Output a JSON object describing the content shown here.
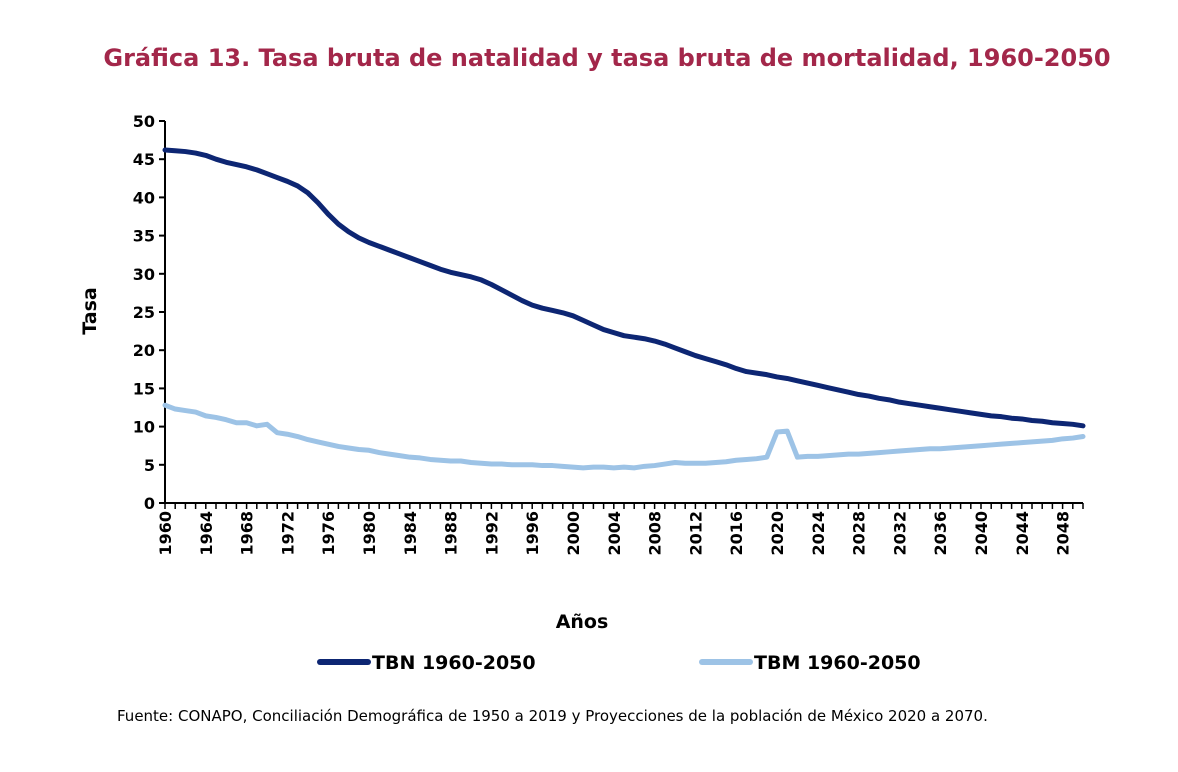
{
  "chart_data": {
    "type": "line",
    "title": "Gráfica 13. Tasa bruta de natalidad y tasa bruta de mortalidad, 1960-2050",
    "xlabel": "Años",
    "ylabel": "Tasa",
    "xlim": [
      1960,
      2050
    ],
    "ylim": [
      0,
      50
    ],
    "yticks": [
      0,
      5,
      10,
      15,
      20,
      25,
      30,
      35,
      40,
      45,
      50
    ],
    "xticks": [
      1960,
      1964,
      1968,
      1972,
      1976,
      1980,
      1984,
      1988,
      1992,
      1996,
      2000,
      2004,
      2008,
      2012,
      2016,
      2020,
      2024,
      2028,
      2032,
      2036,
      2040,
      2044,
      2048
    ],
    "grid": false,
    "legend": "bottom",
    "series": [
      {
        "name": "TBN 1960-2050",
        "color": "#0d2673",
        "points": [
          [
            1960,
            46.2
          ],
          [
            1961,
            46.1
          ],
          [
            1962,
            46.0
          ],
          [
            1963,
            45.8
          ],
          [
            1964,
            45.5
          ],
          [
            1965,
            45.0
          ],
          [
            1966,
            44.6
          ],
          [
            1967,
            44.3
          ],
          [
            1968,
            44.0
          ],
          [
            1969,
            43.6
          ],
          [
            1970,
            43.1
          ],
          [
            1971,
            42.6
          ],
          [
            1972,
            42.1
          ],
          [
            1973,
            41.5
          ],
          [
            1974,
            40.6
          ],
          [
            1975,
            39.3
          ],
          [
            1976,
            37.8
          ],
          [
            1977,
            36.5
          ],
          [
            1978,
            35.5
          ],
          [
            1979,
            34.7
          ],
          [
            1980,
            34.1
          ],
          [
            1981,
            33.6
          ],
          [
            1982,
            33.1
          ],
          [
            1983,
            32.6
          ],
          [
            1984,
            32.1
          ],
          [
            1985,
            31.6
          ],
          [
            1986,
            31.1
          ],
          [
            1987,
            30.6
          ],
          [
            1988,
            30.2
          ],
          [
            1989,
            29.9
          ],
          [
            1990,
            29.6
          ],
          [
            1991,
            29.2
          ],
          [
            1992,
            28.6
          ],
          [
            1993,
            27.9
          ],
          [
            1994,
            27.2
          ],
          [
            1995,
            26.5
          ],
          [
            1996,
            25.9
          ],
          [
            1997,
            25.5
          ],
          [
            1998,
            25.2
          ],
          [
            1999,
            24.9
          ],
          [
            2000,
            24.5
          ],
          [
            2001,
            23.9
          ],
          [
            2002,
            23.3
          ],
          [
            2003,
            22.7
          ],
          [
            2004,
            22.3
          ],
          [
            2005,
            21.9
          ],
          [
            2006,
            21.7
          ],
          [
            2007,
            21.5
          ],
          [
            2008,
            21.2
          ],
          [
            2009,
            20.8
          ],
          [
            2010,
            20.3
          ],
          [
            2011,
            19.8
          ],
          [
            2012,
            19.3
          ],
          [
            2013,
            18.9
          ],
          [
            2014,
            18.5
          ],
          [
            2015,
            18.1
          ],
          [
            2016,
            17.6
          ],
          [
            2017,
            17.2
          ],
          [
            2018,
            17.0
          ],
          [
            2019,
            16.8
          ],
          [
            2020,
            16.5
          ],
          [
            2021,
            16.3
          ],
          [
            2022,
            16.0
          ],
          [
            2023,
            15.7
          ],
          [
            2024,
            15.4
          ],
          [
            2025,
            15.1
          ],
          [
            2026,
            14.8
          ],
          [
            2027,
            14.5
          ],
          [
            2028,
            14.2
          ],
          [
            2029,
            14.0
          ],
          [
            2030,
            13.7
          ],
          [
            2031,
            13.5
          ],
          [
            2032,
            13.2
          ],
          [
            2033,
            13.0
          ],
          [
            2034,
            12.8
          ],
          [
            2035,
            12.6
          ],
          [
            2036,
            12.4
          ],
          [
            2037,
            12.2
          ],
          [
            2038,
            12.0
          ],
          [
            2039,
            11.8
          ],
          [
            2040,
            11.6
          ],
          [
            2041,
            11.4
          ],
          [
            2042,
            11.3
          ],
          [
            2043,
            11.1
          ],
          [
            2044,
            11.0
          ],
          [
            2045,
            10.8
          ],
          [
            2046,
            10.7
          ],
          [
            2047,
            10.5
          ],
          [
            2048,
            10.4
          ],
          [
            2049,
            10.3
          ],
          [
            2050,
            10.1
          ]
        ]
      },
      {
        "name": "TBM 1960-2050",
        "color": "#9dc3e6",
        "points": [
          [
            1960,
            12.8
          ],
          [
            1961,
            12.3
          ],
          [
            1962,
            12.1
          ],
          [
            1963,
            11.9
          ],
          [
            1964,
            11.4
          ],
          [
            1965,
            11.2
          ],
          [
            1966,
            10.9
          ],
          [
            1967,
            10.5
          ],
          [
            1968,
            10.5
          ],
          [
            1969,
            10.1
          ],
          [
            1970,
            10.3
          ],
          [
            1971,
            9.2
          ],
          [
            1972,
            9.0
          ],
          [
            1973,
            8.7
          ],
          [
            1974,
            8.3
          ],
          [
            1975,
            8.0
          ],
          [
            1976,
            7.7
          ],
          [
            1977,
            7.4
          ],
          [
            1978,
            7.2
          ],
          [
            1979,
            7.0
          ],
          [
            1980,
            6.9
          ],
          [
            1981,
            6.6
          ],
          [
            1982,
            6.4
          ],
          [
            1983,
            6.2
          ],
          [
            1984,
            6.0
          ],
          [
            1985,
            5.9
          ],
          [
            1986,
            5.7
          ],
          [
            1987,
            5.6
          ],
          [
            1988,
            5.5
          ],
          [
            1989,
            5.5
          ],
          [
            1990,
            5.3
          ],
          [
            1991,
            5.2
          ],
          [
            1992,
            5.1
          ],
          [
            1993,
            5.1
          ],
          [
            1994,
            5.0
          ],
          [
            1995,
            5.0
          ],
          [
            1996,
            5.0
          ],
          [
            1997,
            4.9
          ],
          [
            1998,
            4.9
          ],
          [
            1999,
            4.8
          ],
          [
            2000,
            4.7
          ],
          [
            2001,
            4.6
          ],
          [
            2002,
            4.7
          ],
          [
            2003,
            4.7
          ],
          [
            2004,
            4.6
          ],
          [
            2005,
            4.7
          ],
          [
            2006,
            4.6
          ],
          [
            2007,
            4.8
          ],
          [
            2008,
            4.9
          ],
          [
            2009,
            5.1
          ],
          [
            2010,
            5.3
          ],
          [
            2011,
            5.2
          ],
          [
            2012,
            5.2
          ],
          [
            2013,
            5.2
          ],
          [
            2014,
            5.3
          ],
          [
            2015,
            5.4
          ],
          [
            2016,
            5.6
          ],
          [
            2017,
            5.7
          ],
          [
            2018,
            5.8
          ],
          [
            2019,
            6.0
          ],
          [
            2020,
            9.3
          ],
          [
            2021,
            9.4
          ],
          [
            2022,
            6.0
          ],
          [
            2023,
            6.1
          ],
          [
            2024,
            6.1
          ],
          [
            2025,
            6.2
          ],
          [
            2026,
            6.3
          ],
          [
            2027,
            6.4
          ],
          [
            2028,
            6.4
          ],
          [
            2029,
            6.5
          ],
          [
            2030,
            6.6
          ],
          [
            2031,
            6.7
          ],
          [
            2032,
            6.8
          ],
          [
            2033,
            6.9
          ],
          [
            2034,
            7.0
          ],
          [
            2035,
            7.1
          ],
          [
            2036,
            7.1
          ],
          [
            2037,
            7.2
          ],
          [
            2038,
            7.3
          ],
          [
            2039,
            7.4
          ],
          [
            2040,
            7.5
          ],
          [
            2041,
            7.6
          ],
          [
            2042,
            7.7
          ],
          [
            2043,
            7.8
          ],
          [
            2044,
            7.9
          ],
          [
            2045,
            8.0
          ],
          [
            2046,
            8.1
          ],
          [
            2047,
            8.2
          ],
          [
            2048,
            8.4
          ],
          [
            2049,
            8.5
          ],
          [
            2050,
            8.7
          ]
        ]
      }
    ]
  },
  "source_note": "Fuente: CONAPO, Conciliación Demográfica de 1950 a 2019 y Proyecciones de la población de México 2020 a 2070.",
  "colors": {
    "title": "#a3274a",
    "axis": "#000000"
  }
}
